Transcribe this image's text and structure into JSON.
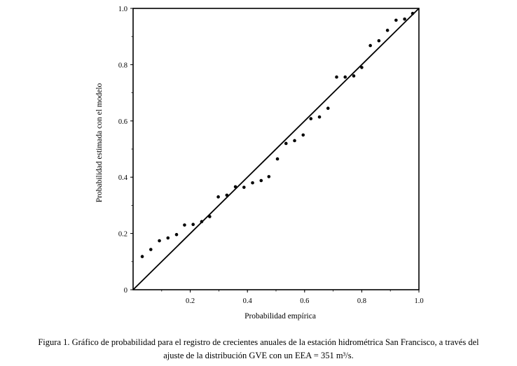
{
  "chart_data": {
    "type": "scatter",
    "xlabel": "Probabilidad empírica",
    "ylabel": "Probabilidad estimada con el modelo",
    "xlim": [
      0,
      1
    ],
    "ylim": [
      0,
      1
    ],
    "x_ticks": [
      "0.2",
      "0.4",
      "0.6",
      "0.8",
      "1.0"
    ],
    "y_ticks": [
      "0",
      "0.2",
      "0.4",
      "0.6",
      "0.8",
      "1.0"
    ],
    "grid": false,
    "reference_line": {
      "x": [
        0,
        1
      ],
      "y": [
        0,
        1
      ]
    },
    "points": [
      {
        "x": 0.032,
        "y": 0.118
      },
      {
        "x": 0.062,
        "y": 0.143
      },
      {
        "x": 0.092,
        "y": 0.174
      },
      {
        "x": 0.122,
        "y": 0.184
      },
      {
        "x": 0.152,
        "y": 0.196
      },
      {
        "x": 0.18,
        "y": 0.23
      },
      {
        "x": 0.21,
        "y": 0.232
      },
      {
        "x": 0.24,
        "y": 0.242
      },
      {
        "x": 0.268,
        "y": 0.26
      },
      {
        "x": 0.298,
        "y": 0.33
      },
      {
        "x": 0.328,
        "y": 0.336
      },
      {
        "x": 0.358,
        "y": 0.366
      },
      {
        "x": 0.388,
        "y": 0.364
      },
      {
        "x": 0.418,
        "y": 0.38
      },
      {
        "x": 0.448,
        "y": 0.388
      },
      {
        "x": 0.475,
        "y": 0.402
      },
      {
        "x": 0.505,
        "y": 0.465
      },
      {
        "x": 0.535,
        "y": 0.52
      },
      {
        "x": 0.565,
        "y": 0.53
      },
      {
        "x": 0.595,
        "y": 0.55
      },
      {
        "x": 0.622,
        "y": 0.608
      },
      {
        "x": 0.652,
        "y": 0.614
      },
      {
        "x": 0.682,
        "y": 0.645
      },
      {
        "x": 0.712,
        "y": 0.756
      },
      {
        "x": 0.742,
        "y": 0.756
      },
      {
        "x": 0.772,
        "y": 0.76
      },
      {
        "x": 0.8,
        "y": 0.79
      },
      {
        "x": 0.83,
        "y": 0.868
      },
      {
        "x": 0.86,
        "y": 0.885
      },
      {
        "x": 0.89,
        "y": 0.922
      },
      {
        "x": 0.92,
        "y": 0.958
      },
      {
        "x": 0.95,
        "y": 0.962
      },
      {
        "x": 0.978,
        "y": 0.982
      }
    ]
  },
  "caption": {
    "line1": "Figura 1. Gráfico de probabilidad para el registro de crecientes anuales de la estación hidrométrica San Francisco, a través del",
    "line2": "ajuste de la distribución GVE con un EEA = 351 m³/s."
  }
}
